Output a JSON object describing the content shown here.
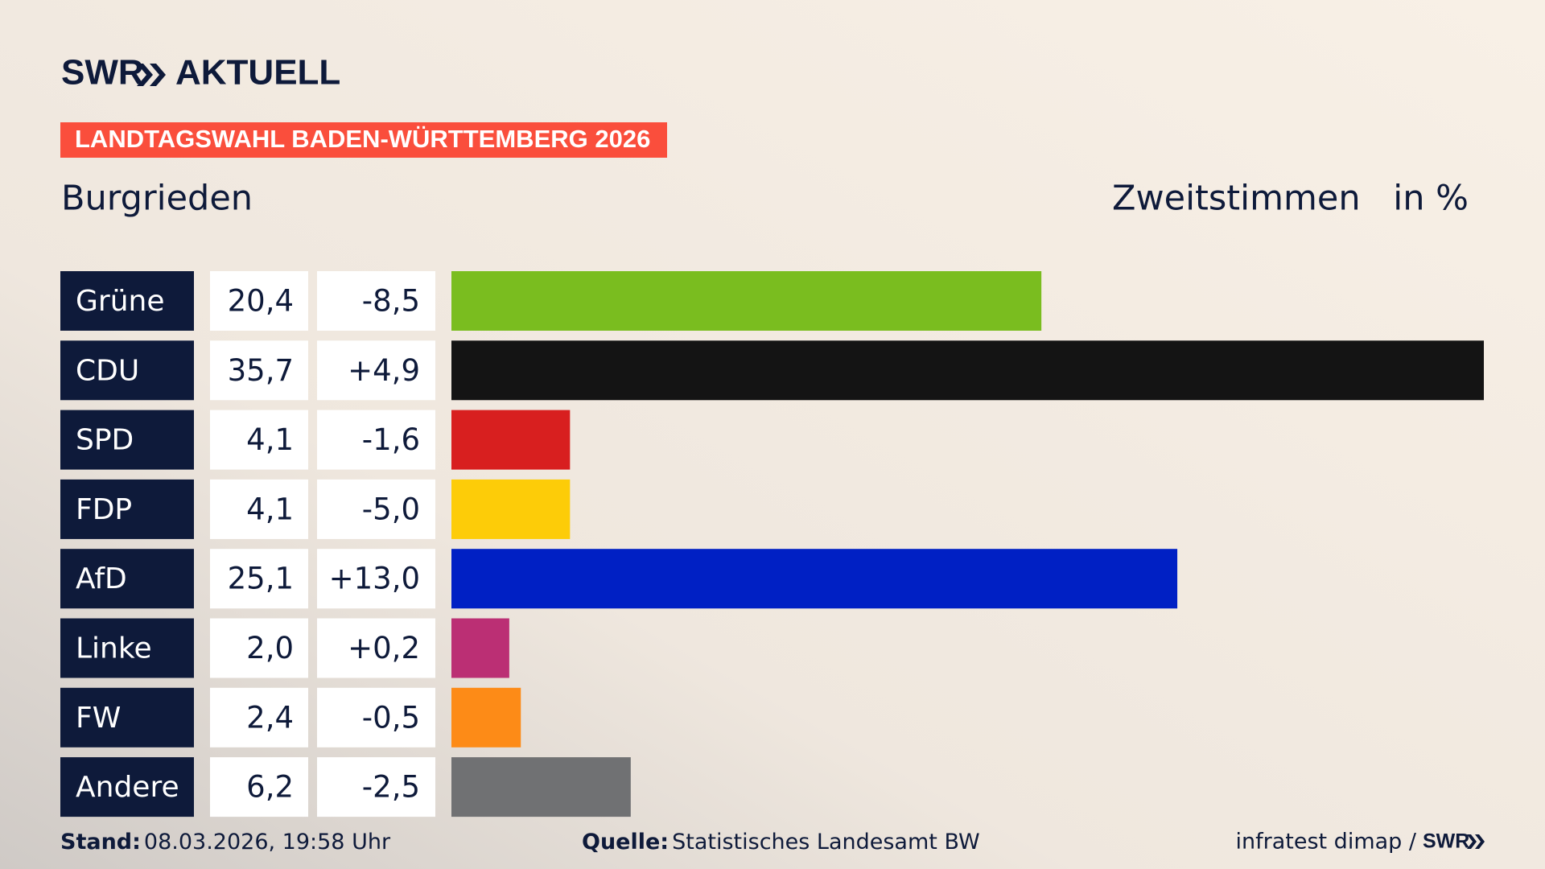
{
  "chart_data": {
    "type": "bar",
    "logo": "SWR",
    "logo_suffix": "AKTUELL",
    "banner": "LANDTAGSWAHL BADEN-WÜRTTEMBERG 2026",
    "location": "Burgrieden",
    "measure": "Zweitstimmen",
    "unit": "in %",
    "categories": [
      "Grüne",
      "CDU",
      "SPD",
      "FDP",
      "AfD",
      "Linke",
      "FW",
      "Andere"
    ],
    "values": [
      20.4,
      35.7,
      4.1,
      4.1,
      25.1,
      2.0,
      2.4,
      6.2
    ],
    "value_labels": [
      "20,4",
      "35,7",
      "4,1",
      "4,1",
      "25,1",
      "2,0",
      "2,4",
      "6,2"
    ],
    "changes": [
      -8.5,
      4.9,
      -1.6,
      -5.0,
      13.0,
      0.2,
      -0.5,
      -2.5
    ],
    "change_labels": [
      "-8,5",
      "+4,9",
      "-1,6",
      "-5,0",
      "+13,0",
      "+0,2",
      "-0,5",
      "-2,5"
    ],
    "colors": [
      "#7abd1f",
      "#141414",
      "#d81f1f",
      "#fdcc08",
      "#0020c4",
      "#bb2f74",
      "#fd8b17",
      "#707173"
    ],
    "stand_label": "Stand:",
    "stand": "08.03.2026, 19:58 Uhr",
    "source_label": "Quelle:",
    "source": "Statistisches Landesamt BW",
    "credit": "infratest dimap /",
    "credit_logo": "SWR"
  }
}
